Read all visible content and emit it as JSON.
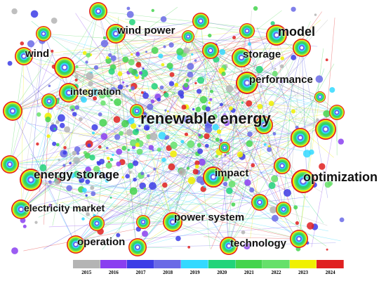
{
  "keywords": [
    {
      "id": "renewable-energy",
      "text": "renewable energy"
    },
    {
      "id": "optimization",
      "text": "optimization"
    },
    {
      "id": "energy-storage",
      "text": "energy storage"
    },
    {
      "id": "model",
      "text": "model"
    },
    {
      "id": "wind-power",
      "text": "wind power"
    },
    {
      "id": "wind",
      "text": "wind"
    },
    {
      "id": "storage",
      "text": "storage"
    },
    {
      "id": "performance",
      "text": "performance"
    },
    {
      "id": "integration",
      "text": "integration"
    },
    {
      "id": "impact",
      "text": "impact"
    },
    {
      "id": "electricity-market",
      "text": "electricity market"
    },
    {
      "id": "power-system",
      "text": "power system"
    },
    {
      "id": "operation",
      "text": "operation"
    },
    {
      "id": "technology",
      "text": "technology"
    }
  ],
  "timeline": {
    "years": [
      "2015",
      "2016",
      "2017",
      "2018",
      "2019",
      "2020",
      "2021",
      "2022",
      "2023",
      "2024"
    ],
    "colors": [
      "#b4b4b4",
      "#8a3ff0",
      "#3c3ce6",
      "#6a6ae6",
      "#33d9ff",
      "#22d47a",
      "#44d44d",
      "#66e06a",
      "#f0f000",
      "#e02020"
    ]
  }
}
